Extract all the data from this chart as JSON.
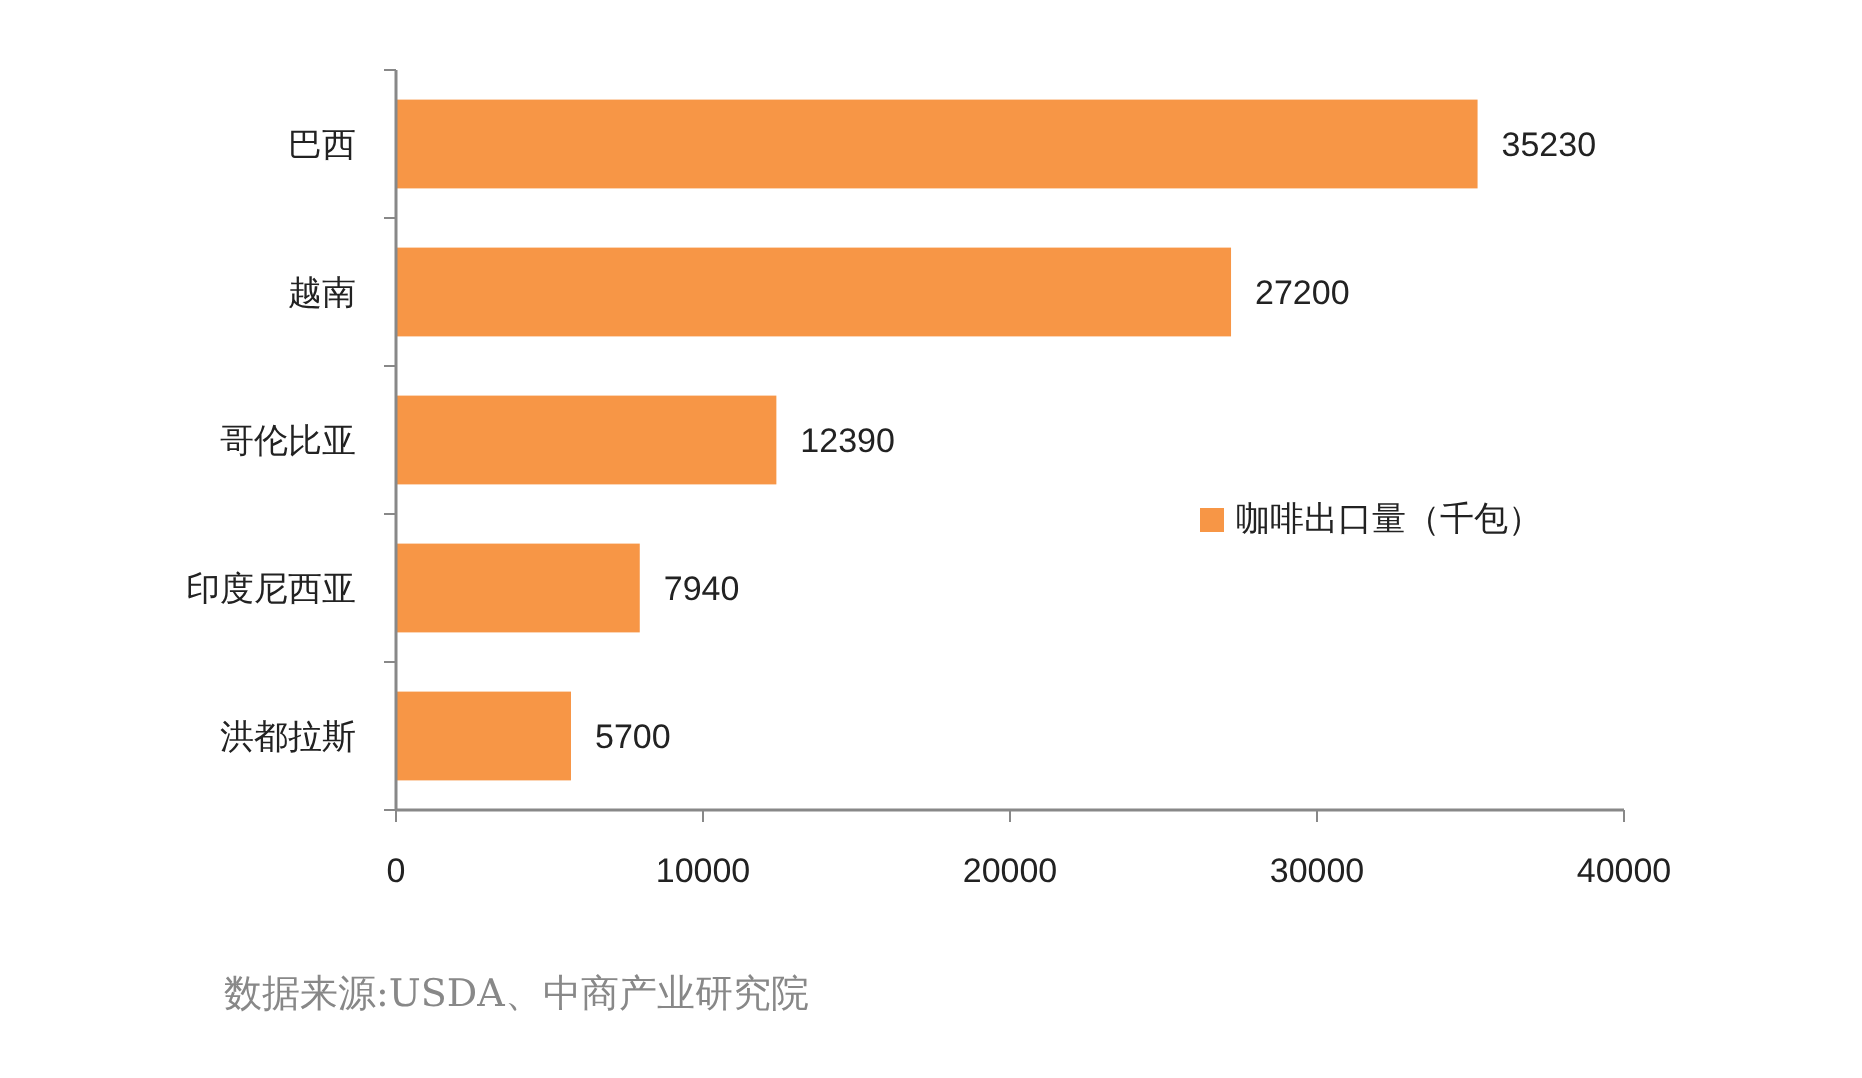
{
  "chart_data": {
    "type": "bar",
    "orientation": "horizontal",
    "categories": [
      "巴西",
      "越南",
      "哥伦比亚",
      "印度尼西亚",
      "洪都拉斯"
    ],
    "series": [
      {
        "name": "咖啡出口量（千包）",
        "color": "#f79646",
        "values": [
          35230,
          27200,
          12390,
          7940,
          5700
        ]
      }
    ],
    "xlim": [
      0,
      40000
    ],
    "xticks": [
      0,
      10000,
      20000,
      30000,
      40000
    ],
    "data_labels": true,
    "grid": false,
    "legend": "right",
    "annotations": [
      "数据来源:USDA、中商产业研究院"
    ]
  }
}
